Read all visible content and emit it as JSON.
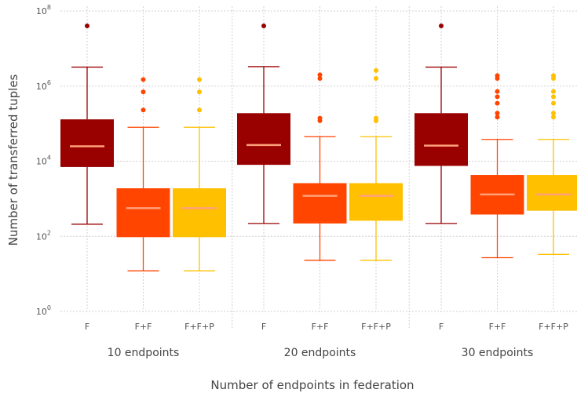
{
  "chart_data": {
    "type": "box",
    "ylabel": "Number of transferred tuples",
    "xlabel": "Number of endpoints in federation",
    "yscale": "log10",
    "ylim": [
      1,
      100000000
    ],
    "y_ticks": [
      {
        "value": 1,
        "base": "10",
        "exp": "0"
      },
      {
        "value": 100,
        "base": "10",
        "exp": "2"
      },
      {
        "value": 10000,
        "base": "10",
        "exp": "4"
      },
      {
        "value": 1000000,
        "base": "10",
        "exp": "6"
      },
      {
        "value": 100000000,
        "base": "10",
        "exp": "8"
      }
    ],
    "grid": true,
    "series_colors": {
      "F": "#990000",
      "F+F": "#ff4500",
      "F+F+P": "#ffc000"
    },
    "median_color": "#ffa07a",
    "groups": [
      {
        "label": "10 endpoints",
        "boxes": [
          {
            "category": "F",
            "whisker_low": 210,
            "q1": 7000,
            "median": 25000,
            "q3": 130000,
            "whisker_high": 3200000,
            "outliers": [
              40000000
            ]
          },
          {
            "category": "F+F",
            "whisker_low": 12,
            "q1": 95,
            "median": 560,
            "q3": 1900,
            "whisker_high": 80000,
            "outliers": [
              230000,
              700000,
              1500000
            ]
          },
          {
            "category": "F+F+P",
            "whisker_low": 12,
            "q1": 95,
            "median": 560,
            "q3": 1900,
            "whisker_high": 80000,
            "outliers": [
              230000,
              700000,
              1500000
            ]
          }
        ]
      },
      {
        "label": "20 endpoints",
        "boxes": [
          {
            "category": "F",
            "whisker_low": 220,
            "q1": 8000,
            "median": 27000,
            "q3": 190000,
            "whisker_high": 3300000,
            "outliers": [
              40000000
            ]
          },
          {
            "category": "F+F",
            "whisker_low": 23,
            "q1": 220,
            "median": 1200,
            "q3": 2600,
            "whisker_high": 45000,
            "outliers": [
              120000,
              140000,
              1600000,
              2000000
            ]
          },
          {
            "category": "F+F+P",
            "whisker_low": 23,
            "q1": 260,
            "median": 1200,
            "q3": 2600,
            "whisker_high": 45000,
            "outliers": [
              120000,
              140000,
              1600000,
              2600000
            ]
          }
        ]
      },
      {
        "label": "30 endpoints",
        "boxes": [
          {
            "category": "F",
            "whisker_low": 220,
            "q1": 7500,
            "median": 26000,
            "q3": 190000,
            "whisker_high": 3200000,
            "outliers": [
              40000000
            ]
          },
          {
            "category": "F+F",
            "whisker_low": 27,
            "q1": 380,
            "median": 1300,
            "q3": 4300,
            "whisker_high": 38000,
            "outliers": [
              150000,
              190000,
              350000,
              520000,
              720000,
              1600000,
              1900000
            ]
          },
          {
            "category": "F+F+P",
            "whisker_low": 33,
            "q1": 480,
            "median": 1300,
            "q3": 4300,
            "whisker_high": 38000,
            "outliers": [
              150000,
              190000,
              350000,
              520000,
              720000,
              1600000,
              1900000
            ]
          }
        ]
      }
    ]
  }
}
